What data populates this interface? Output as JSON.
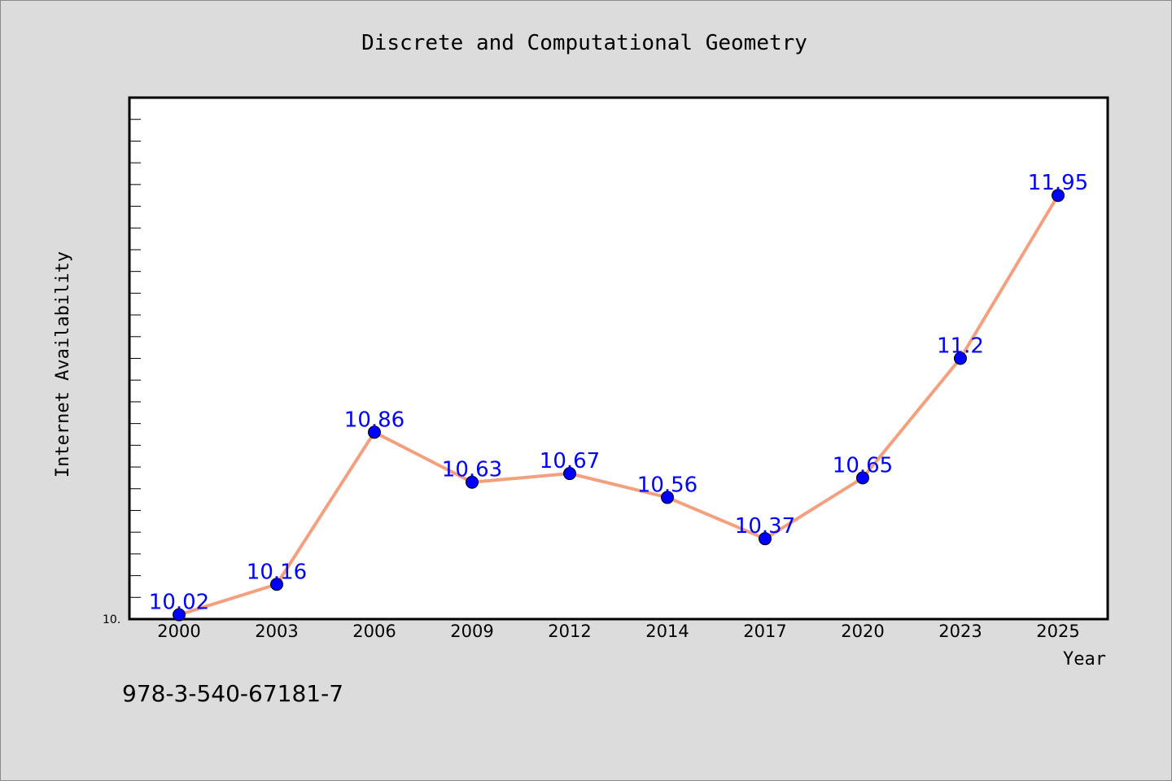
{
  "chart_data": {
    "type": "line",
    "title": "Discrete and Computational Geometry",
    "xlabel": "Year",
    "ylabel": "Internet Availability",
    "categories": [
      "2000",
      "2003",
      "2006",
      "2009",
      "2012",
      "2014",
      "2017",
      "2020",
      "2023",
      "2025"
    ],
    "series": [
      {
        "values": [
          10.02,
          10.16,
          10.86,
          10.63,
          10.67,
          10.56,
          10.37,
          10.65,
          11.2,
          11.95
        ],
        "data_labels": [
          "10.02",
          "10.16",
          "10.86",
          "10.63",
          "10.67",
          "10.56",
          "10.37",
          "10.65",
          "11.2",
          "11.95"
        ]
      }
    ],
    "ylim": [
      10.0,
      12.4
    ],
    "ytick_label": "10.",
    "grid": false,
    "line_color": "#f4a07e",
    "marker_color": "#0000ff",
    "label_color": "#0000ff"
  },
  "footer": {
    "isbn": "978-3-540-67181-7"
  }
}
